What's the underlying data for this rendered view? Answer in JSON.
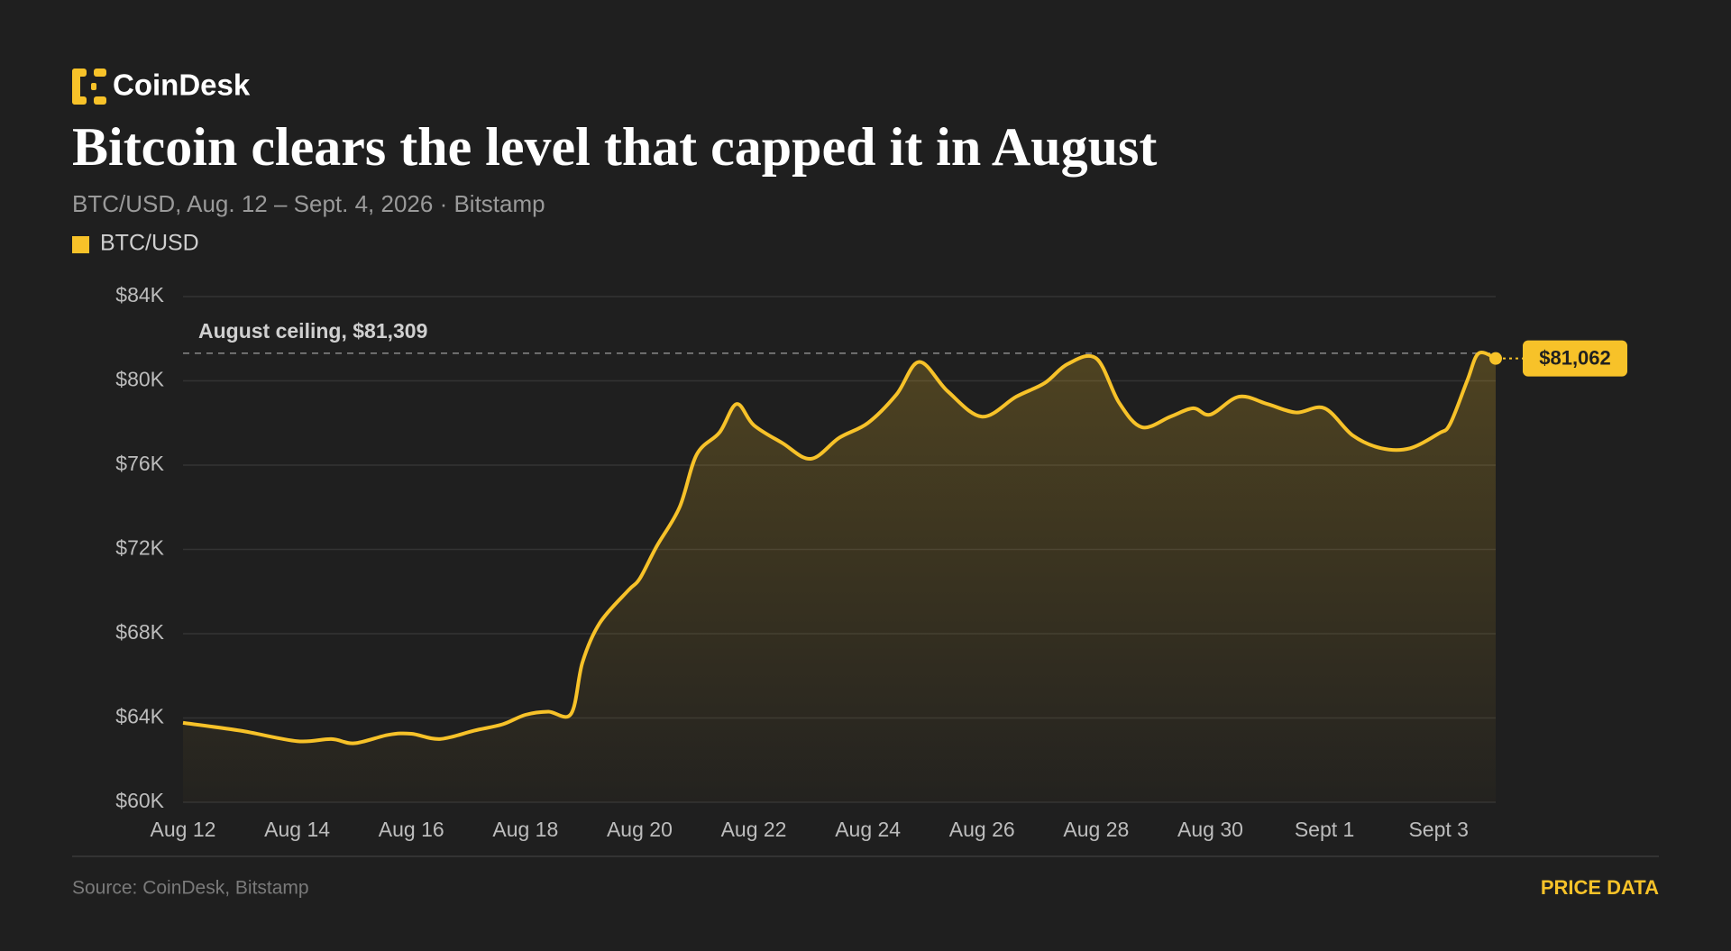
{
  "brand": "CoinDesk",
  "chart_data": {
    "type": "line",
    "title": "Bitcoin clears the level that capped it in August",
    "subtitle": "BTC/USD, Aug. 12 – Sept. 4, 2026 · Bitstamp",
    "x": [
      0,
      1,
      2,
      2.6,
      3,
      3.6,
      4,
      4.5,
      5.1,
      5.6,
      6,
      6.4,
      6.8,
      7.0,
      7.3,
      7.8,
      8,
      8.3,
      8.7,
      9.0,
      9.4,
      9.7,
      10,
      10.5,
      11,
      11.5,
      12,
      12.5,
      12.9,
      13.4,
      14,
      14.6,
      15.1,
      15.5,
      16,
      16.4,
      16.8,
      17.3,
      17.7,
      18,
      18.5,
      19,
      19.5,
      20,
      20.5,
      21,
      21.5,
      22,
      22.2,
      22.5,
      22.7,
      23
    ],
    "series": [
      {
        "name": "BTC/USD",
        "color": "#f7c229",
        "values": [
          63770,
          63400,
          62900,
          63000,
          62800,
          63200,
          63250,
          63000,
          63400,
          63700,
          64150,
          64300,
          64200,
          66650,
          68500,
          70050,
          70600,
          72150,
          74000,
          76500,
          77550,
          78900,
          77900,
          77050,
          76300,
          77300,
          78000,
          79350,
          80900,
          79500,
          78300,
          79250,
          79900,
          80800,
          81070,
          78970,
          77800,
          78300,
          78700,
          78400,
          79250,
          78900,
          78500,
          78700,
          77400,
          76800,
          76800,
          77500,
          77950,
          80000,
          81300,
          81062
        ],
        "value_labels": [
          null,
          null,
          null,
          null,
          null,
          null,
          null,
          null,
          null,
          null,
          null,
          null,
          null,
          null,
          null,
          null,
          null,
          null,
          null,
          null,
          null,
          null,
          null,
          null,
          null,
          null,
          null,
          null,
          null,
          null,
          null,
          null,
          null,
          null,
          null,
          null,
          null,
          null,
          null,
          null,
          null,
          null,
          null,
          null,
          null,
          null,
          null,
          null,
          null,
          null,
          null,
          "$81,062"
        ]
      }
    ],
    "xlim": [
      0,
      23
    ],
    "xticks": [
      {
        "value": 0,
        "label": "Aug 12"
      },
      {
        "value": 2,
        "label": "Aug 14"
      },
      {
        "value": 4,
        "label": "Aug 16"
      },
      {
        "value": 6,
        "label": "Aug 18"
      },
      {
        "value": 8,
        "label": "Aug 20"
      },
      {
        "value": 10,
        "label": "Aug 22"
      },
      {
        "value": 12,
        "label": "Aug 24"
      },
      {
        "value": 14,
        "label": "Aug 26"
      },
      {
        "value": 16,
        "label": "Aug 28"
      },
      {
        "value": 18,
        "label": "Aug 30"
      },
      {
        "value": 20,
        "label": "Sept 1"
      },
      {
        "value": 22,
        "label": "Sept 3"
      }
    ],
    "ylim": [
      60000,
      84000
    ],
    "yticks": [
      {
        "value": 60000,
        "label": "$60K"
      },
      {
        "value": 64000,
        "label": "$64K"
      },
      {
        "value": 68000,
        "label": "$68K"
      },
      {
        "value": 72000,
        "label": "$72K"
      },
      {
        "value": 76000,
        "label": "$76K"
      },
      {
        "value": 80000,
        "label": "$80K"
      },
      {
        "value": 84000,
        "label": "$84K"
      }
    ],
    "grid": true,
    "annotations": [
      {
        "text": "August ceiling, $81,309",
        "y": 81309
      }
    ],
    "source": "Source: CoinDesk, Bitstamp",
    "link": "PRICE DATA"
  }
}
